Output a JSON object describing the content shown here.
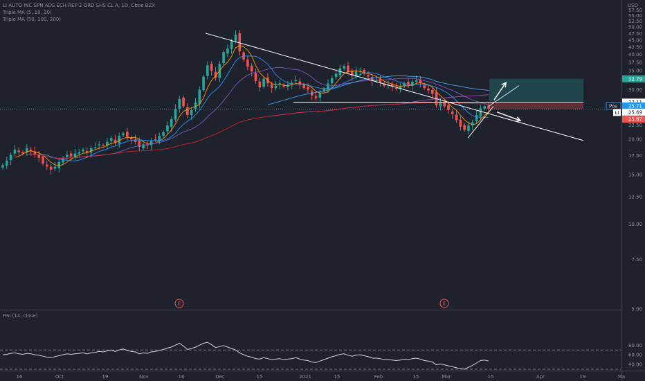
{
  "header": {
    "title": "LI AUTO INC SPN ADS ECH REP 2 ORD SHS CL A, 1D, Cboe BZX",
    "indicator1": "Triple MA (5, 10, 20)",
    "indicator2": "Triple MA (50, 100, 200)",
    "currency": "USD"
  },
  "rsi": {
    "label": "RSI (14, close)",
    "ticks": [
      "80.00",
      "60.00",
      "40.00"
    ],
    "upper": 70,
    "lower": 30,
    "series_color": "#d1d4dc"
  },
  "colors": {
    "up": "#26a69a",
    "down": "#ef5350",
    "background": "#1e222d",
    "ma5": "#ff9800",
    "ma10": "#2196f3",
    "ma20": "#7e57c2",
    "ma50": "#42a5f5",
    "ma100": "#ab47bc",
    "ma200": "#c62828",
    "target_zone": "#26a69a",
    "stop_zone": "#ef5350"
  },
  "events": [
    "E",
    "E"
  ],
  "price_labels": {
    "target": "32.79",
    "entry": "27.11",
    "pos_tag": "Pos",
    "pos_value": "25.71",
    "ticker_tag": "LI",
    "last": "25.69",
    "stop": "25.67"
  },
  "chart_data": {
    "type": "candlestick",
    "title": "LI AUTO INC SPN ADS ECH REP 2 ORD SHS CL A, 1D, Cboe BZX",
    "xlabel": "",
    "ylabel": "",
    "y_scale": "log",
    "ylim": [
      5,
      59
    ],
    "y_ticks": [
      "57.50",
      "55.00",
      "52.50",
      "50.00",
      "47.50",
      "45.00",
      "42.50",
      "40.00",
      "37.50",
      "35.00",
      "32.50",
      "30.00",
      "27.50",
      "25.00",
      "22.50",
      "20.00",
      "17.50",
      "15.00",
      "12.50",
      "10.00",
      "7.50",
      "5.00"
    ],
    "x_ticks": [
      "16",
      "Oct",
      "19",
      "Nov",
      "16",
      "Dec",
      "15",
      "2021",
      "15",
      "Feb",
      "15",
      "Mar",
      "15",
      "Apr",
      "19",
      "Ma"
    ],
    "grid": false,
    "candles_close": [
      16.2,
      16.8,
      17.6,
      18.4,
      18.0,
      17.8,
      18.6,
      18.2,
      17.6,
      17.2,
      16.4,
      16.0,
      15.6,
      16.0,
      16.6,
      17.2,
      17.6,
      17.4,
      17.8,
      18.0,
      18.4,
      18.0,
      18.6,
      18.8,
      19.2,
      19.0,
      19.6,
      20.2,
      19.4,
      20.6,
      21.0,
      20.4,
      20.0,
      19.6,
      18.8,
      19.2,
      19.0,
      19.8,
      20.0,
      20.6,
      21.2,
      22.4,
      23.6,
      25.6,
      27.8,
      26.2,
      24.4,
      25.4,
      27.0,
      30.0,
      33.4,
      36.6,
      35.0,
      33.0,
      37.0,
      40.8,
      42.0,
      44.6,
      47.0,
      41.0,
      38.4,
      36.2,
      34.8,
      32.2,
      30.6,
      32.8,
      31.6,
      30.4,
      31.0,
      31.6,
      30.8,
      31.2,
      31.8,
      32.4,
      31.2,
      30.4,
      30.0,
      28.6,
      28.0,
      29.2,
      30.2,
      31.6,
      33.0,
      34.2,
      35.8,
      36.4,
      34.6,
      33.6,
      34.8,
      35.0,
      34.2,
      33.4,
      32.2,
      32.4,
      31.8,
      31.0,
      31.2,
      30.8,
      30.4,
      30.8,
      31.6,
      31.2,
      32.0,
      32.4,
      31.6,
      30.4,
      29.8,
      29.0,
      26.4,
      27.2,
      26.2,
      25.4,
      24.6,
      23.4,
      22.2,
      21.6,
      22.4,
      23.0,
      24.4,
      25.8,
      26.2,
      25.7
    ],
    "rsi_values": [
      60,
      61,
      63,
      64,
      62,
      61,
      63,
      62,
      60,
      59,
      57,
      55,
      54,
      56,
      58,
      60,
      62,
      61,
      62,
      63,
      64,
      62,
      64,
      65,
      67,
      66,
      68,
      70,
      67,
      70,
      72,
      69,
      67,
      66,
      62,
      64,
      63,
      66,
      67,
      69,
      71,
      74,
      76,
      80,
      84,
      78,
      71,
      73,
      76,
      80,
      84,
      86,
      81,
      75,
      77,
      79,
      76,
      73,
      70,
      64,
      60,
      57,
      55,
      52,
      51,
      54,
      52,
      50,
      51,
      52,
      50,
      51,
      52,
      54,
      51,
      49,
      48,
      45,
      44,
      47,
      50,
      53,
      56,
      58,
      61,
      62,
      59,
      57,
      59,
      60,
      58,
      56,
      53,
      53,
      52,
      50,
      50,
      49,
      48,
      49,
      51,
      50,
      52,
      53,
      51,
      48,
      47,
      45,
      39,
      41,
      39,
      37,
      35,
      33,
      31,
      30,
      34,
      38,
      43,
      48,
      49,
      47
    ]
  }
}
